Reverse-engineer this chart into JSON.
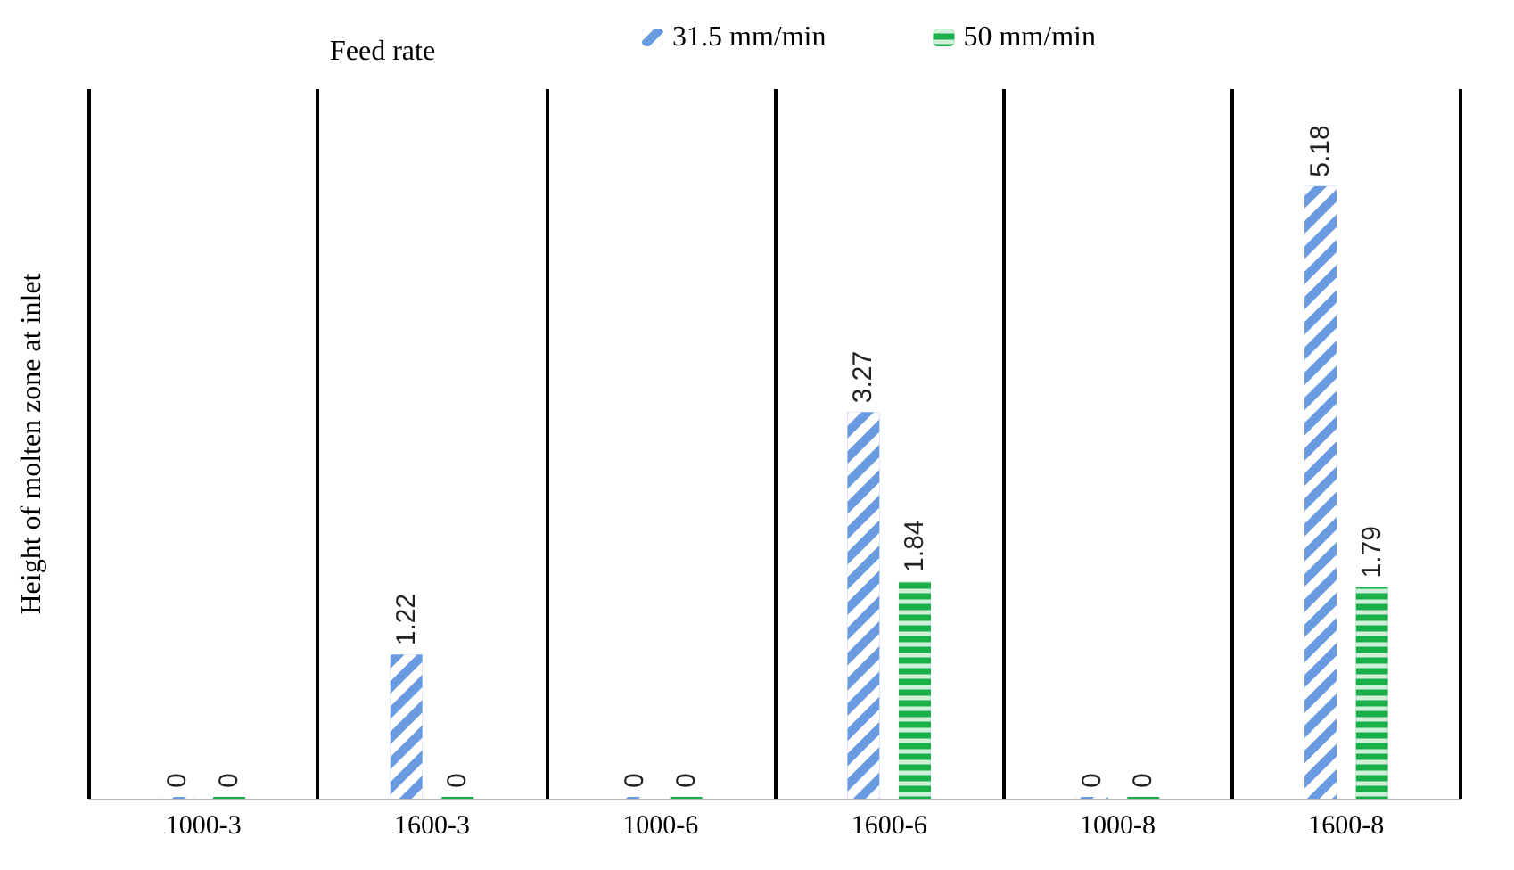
{
  "chart_data": {
    "type": "bar",
    "ylabel": "Height of molten zone at inlet",
    "legend_title": "Feed rate",
    "categories": [
      "1000-3",
      "1600-3",
      "1000-6",
      "1600-6",
      "1000-8",
      "1600-8"
    ],
    "series": [
      {
        "name": "31.5 mm/min",
        "color": "#6a9be0",
        "values": [
          0,
          1.22,
          0,
          3.27,
          0,
          5.18
        ]
      },
      {
        "name": "50 mm/min",
        "color": "#19b04b",
        "values": [
          0,
          0,
          0,
          1.84,
          0,
          1.79
        ]
      }
    ],
    "relative": false,
    "data_labels": true,
    "legend": "top",
    "grid": "x"
  }
}
